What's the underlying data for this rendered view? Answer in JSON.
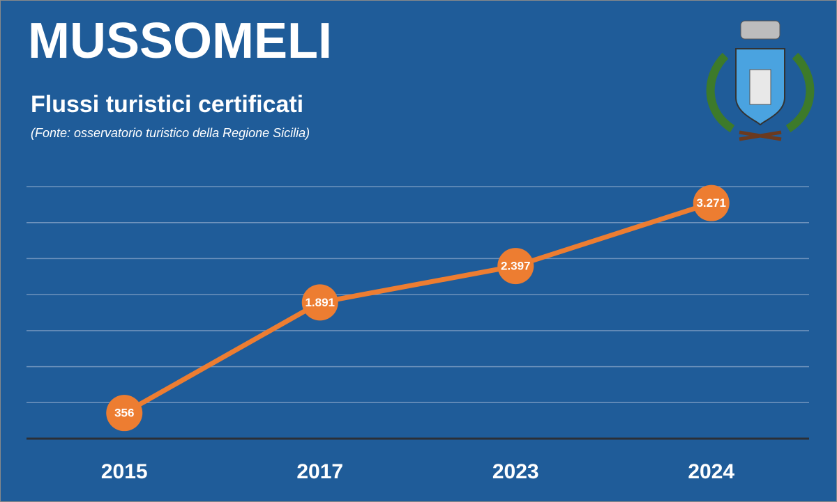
{
  "chart_data": {
    "type": "line",
    "title": "MUSSOMELI",
    "subtitle": "Flussi turistici certificati",
    "source": "(Fonte: osservatorio turistico della Regione Sicilia)",
    "categories": [
      "2015",
      "2017",
      "2023",
      "2024"
    ],
    "values": [
      356,
      1891,
      2397,
      3271
    ],
    "value_labels": [
      "356",
      "1.891",
      "2.397",
      "3.271"
    ],
    "color": "#ed7d31",
    "ylim": [
      0,
      3500
    ],
    "yticks": [
      0,
      500,
      1000,
      1500,
      2000,
      2500,
      3000,
      3500
    ],
    "grid": true
  }
}
